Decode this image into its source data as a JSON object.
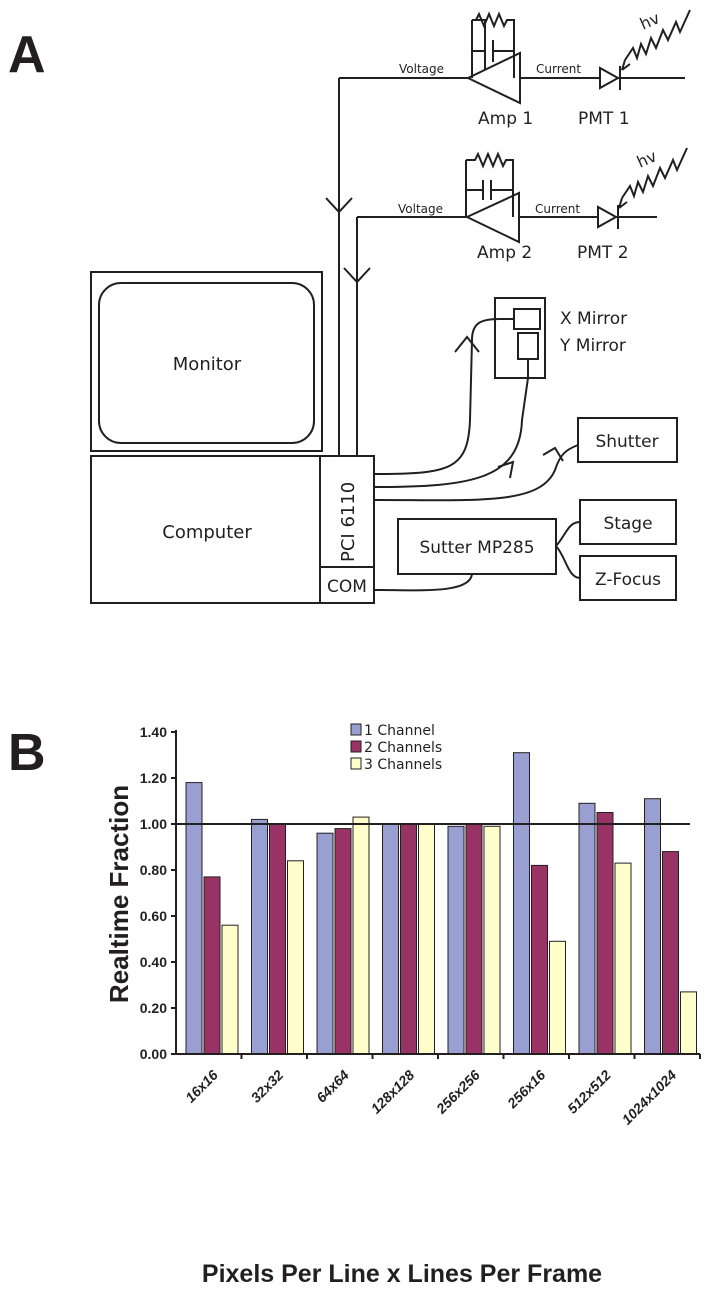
{
  "panel_a": {
    "letter": "A",
    "amp1": "Amp 1",
    "amp2": "Amp 2",
    "pmt1": "PMT 1",
    "pmt2": "PMT 2",
    "voltage": "Voltage",
    "current": "Current",
    "hv": "hv",
    "x_mirror": "X Mirror",
    "y_mirror": "Y Mirror",
    "monitor": "Monitor",
    "computer": "Computer",
    "pci": "PCI 6110",
    "com": "COM",
    "sutter": "Sutter MP285",
    "shutter": "Shutter",
    "stage": "Stage",
    "zfocus": "Z-Focus"
  },
  "panel_b": {
    "letter": "B"
  },
  "chart_data": {
    "type": "bar",
    "title": "",
    "xlabel": "Pixels Per Line x Lines Per Frame",
    "ylabel": "Realtime Fraction",
    "ylim": [
      0,
      1.4
    ],
    "yticks": [
      "0.00",
      "0.20",
      "0.40",
      "0.60",
      "0.80",
      "1.00",
      "1.20",
      "1.40"
    ],
    "reference_line": 1.0,
    "legend_position": "top-center",
    "categories": [
      "16x16",
      "32x32",
      "64x64",
      "128x128",
      "256x256",
      "256x16",
      "512x512",
      "1024x1024"
    ],
    "series": [
      {
        "name": "1 Channel",
        "color": "#9a9fd2",
        "values": [
          1.18,
          1.02,
          0.96,
          1.0,
          0.99,
          1.31,
          1.09,
          1.11
        ]
      },
      {
        "name": "2 Channels",
        "color": "#993366",
        "values": [
          0.77,
          1.0,
          0.98,
          1.0,
          1.0,
          0.82,
          1.05,
          0.88
        ]
      },
      {
        "name": "3 Channels",
        "color": "#ffffcc",
        "values": [
          0.56,
          0.84,
          1.03,
          1.0,
          0.99,
          0.49,
          0.83,
          0.27
        ]
      }
    ]
  }
}
